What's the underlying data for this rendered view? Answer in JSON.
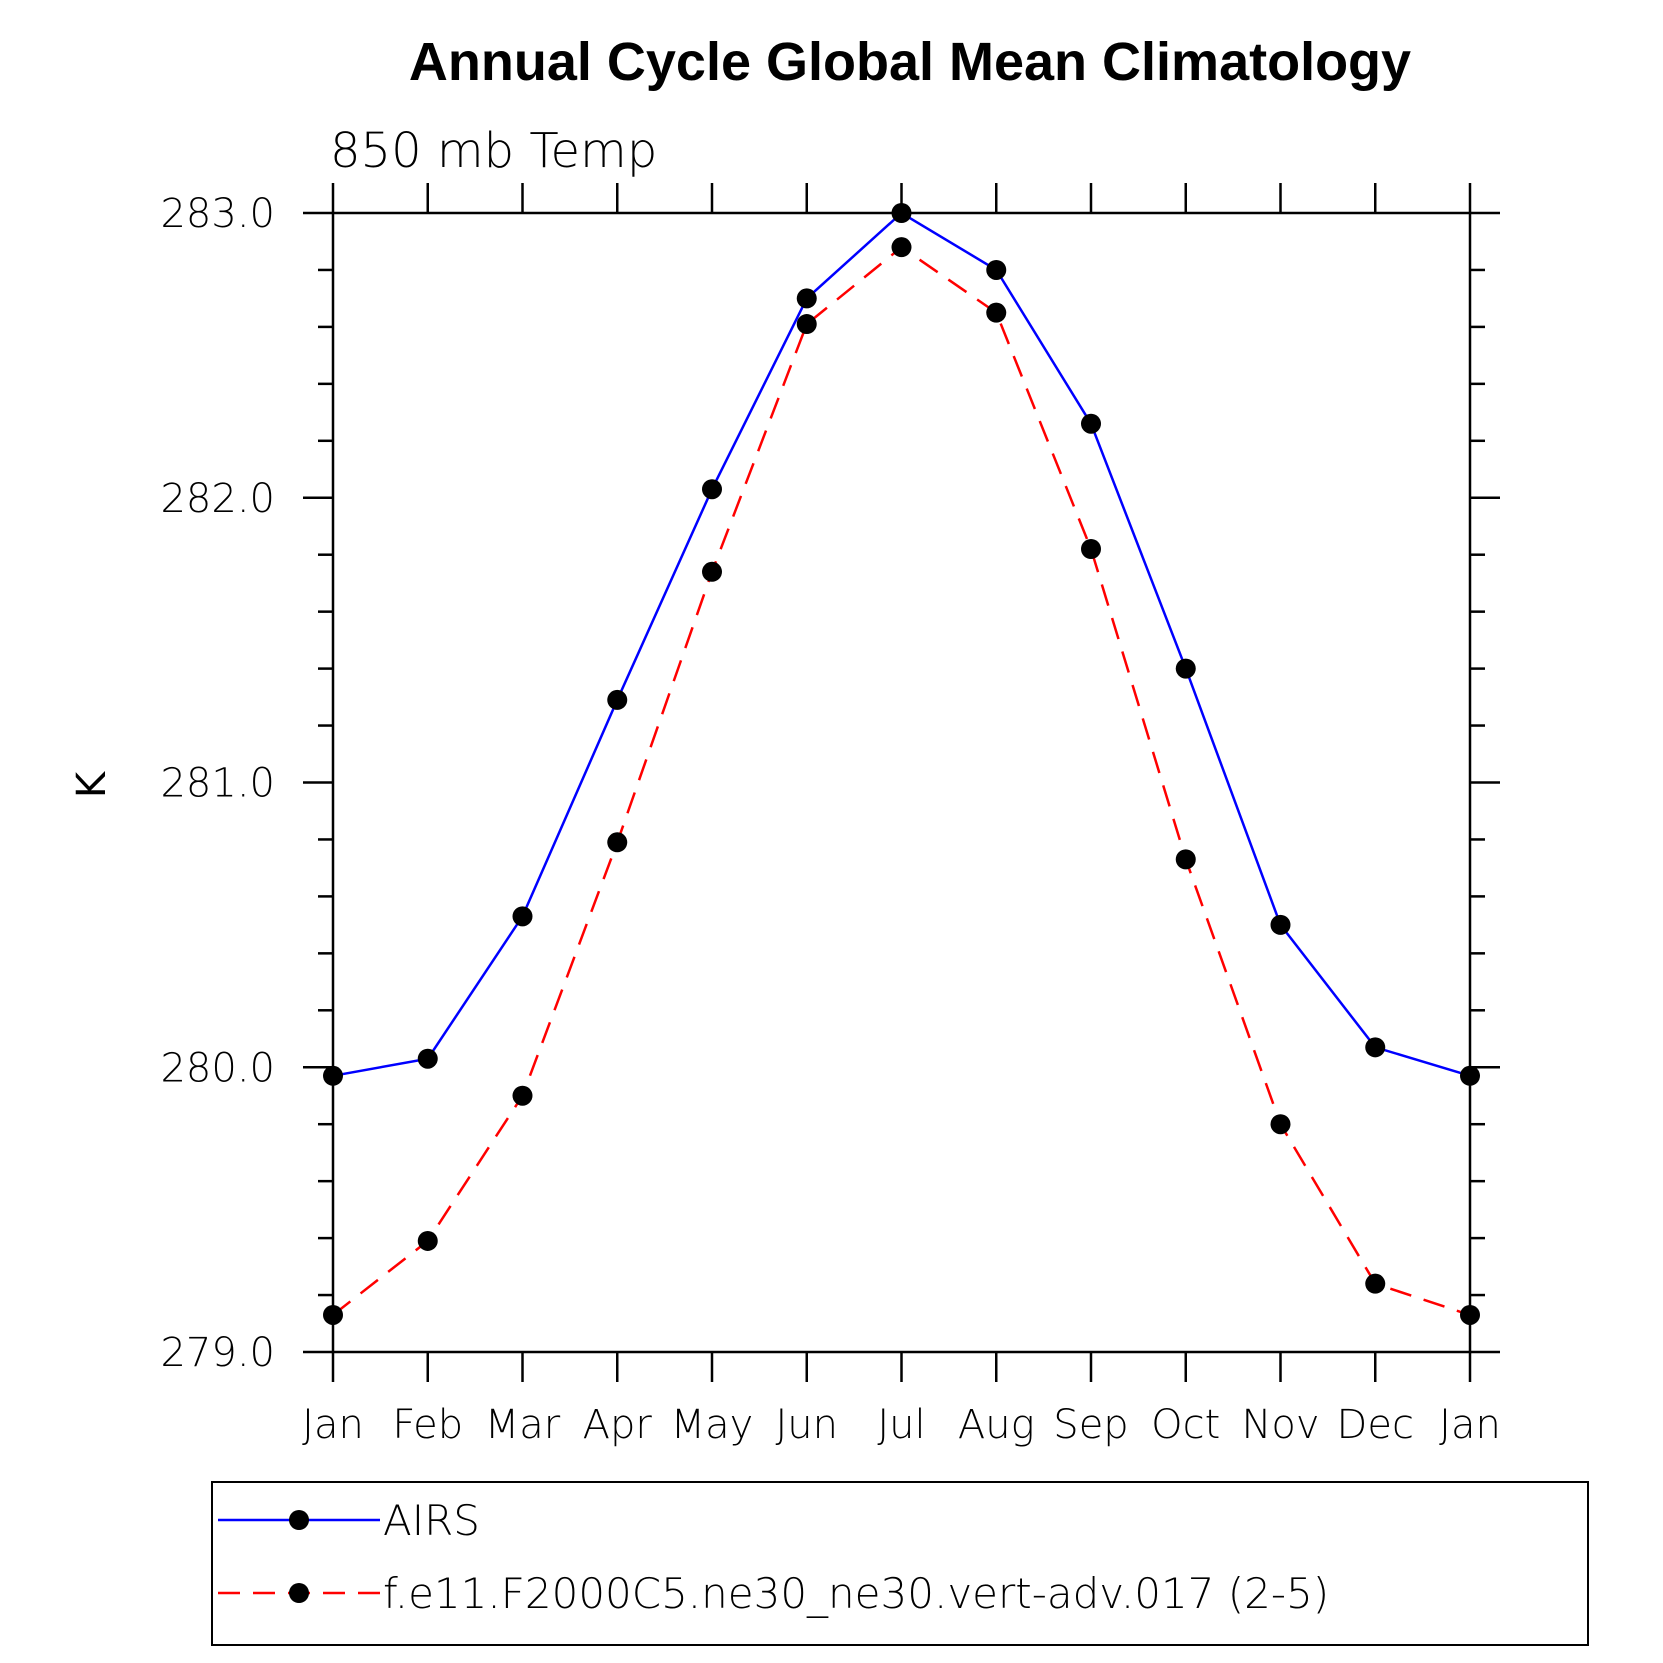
{
  "chart_data": {
    "type": "line",
    "title": "Annual Cycle Global Mean Climatology",
    "subtitle": "850 mb Temp",
    "xlabel": "",
    "ylabel": "K",
    "categories": [
      "Jan",
      "Feb",
      "Mar",
      "Apr",
      "May",
      "Jun",
      "Jul",
      "Aug",
      "Sep",
      "Oct",
      "Nov",
      "Dec",
      "Jan"
    ],
    "yticks": [
      "279.0",
      "280.0",
      "281.0",
      "282.0",
      "283.0"
    ],
    "ylim": [
      279.0,
      283.0
    ],
    "grid": false,
    "legend_position": "bottom",
    "series": [
      {
        "name": "AIRS",
        "color": "#0000ff",
        "dash": "solid",
        "marker": "circle",
        "values": [
          279.97,
          280.03,
          280.53,
          281.29,
          282.03,
          282.7,
          283.0,
          282.8,
          282.26,
          281.4,
          280.5,
          280.07,
          279.97
        ]
      },
      {
        "name": "f.e11.F2000C5.ne30_ne30.vert-adv.017 (2-5)",
        "color": "#ff0000",
        "dash": "dashed",
        "marker": "circle",
        "values": [
          279.13,
          279.39,
          279.9,
          280.79,
          281.74,
          282.61,
          282.88,
          282.65,
          281.82,
          280.73,
          279.8,
          279.24,
          279.13
        ]
      }
    ]
  }
}
